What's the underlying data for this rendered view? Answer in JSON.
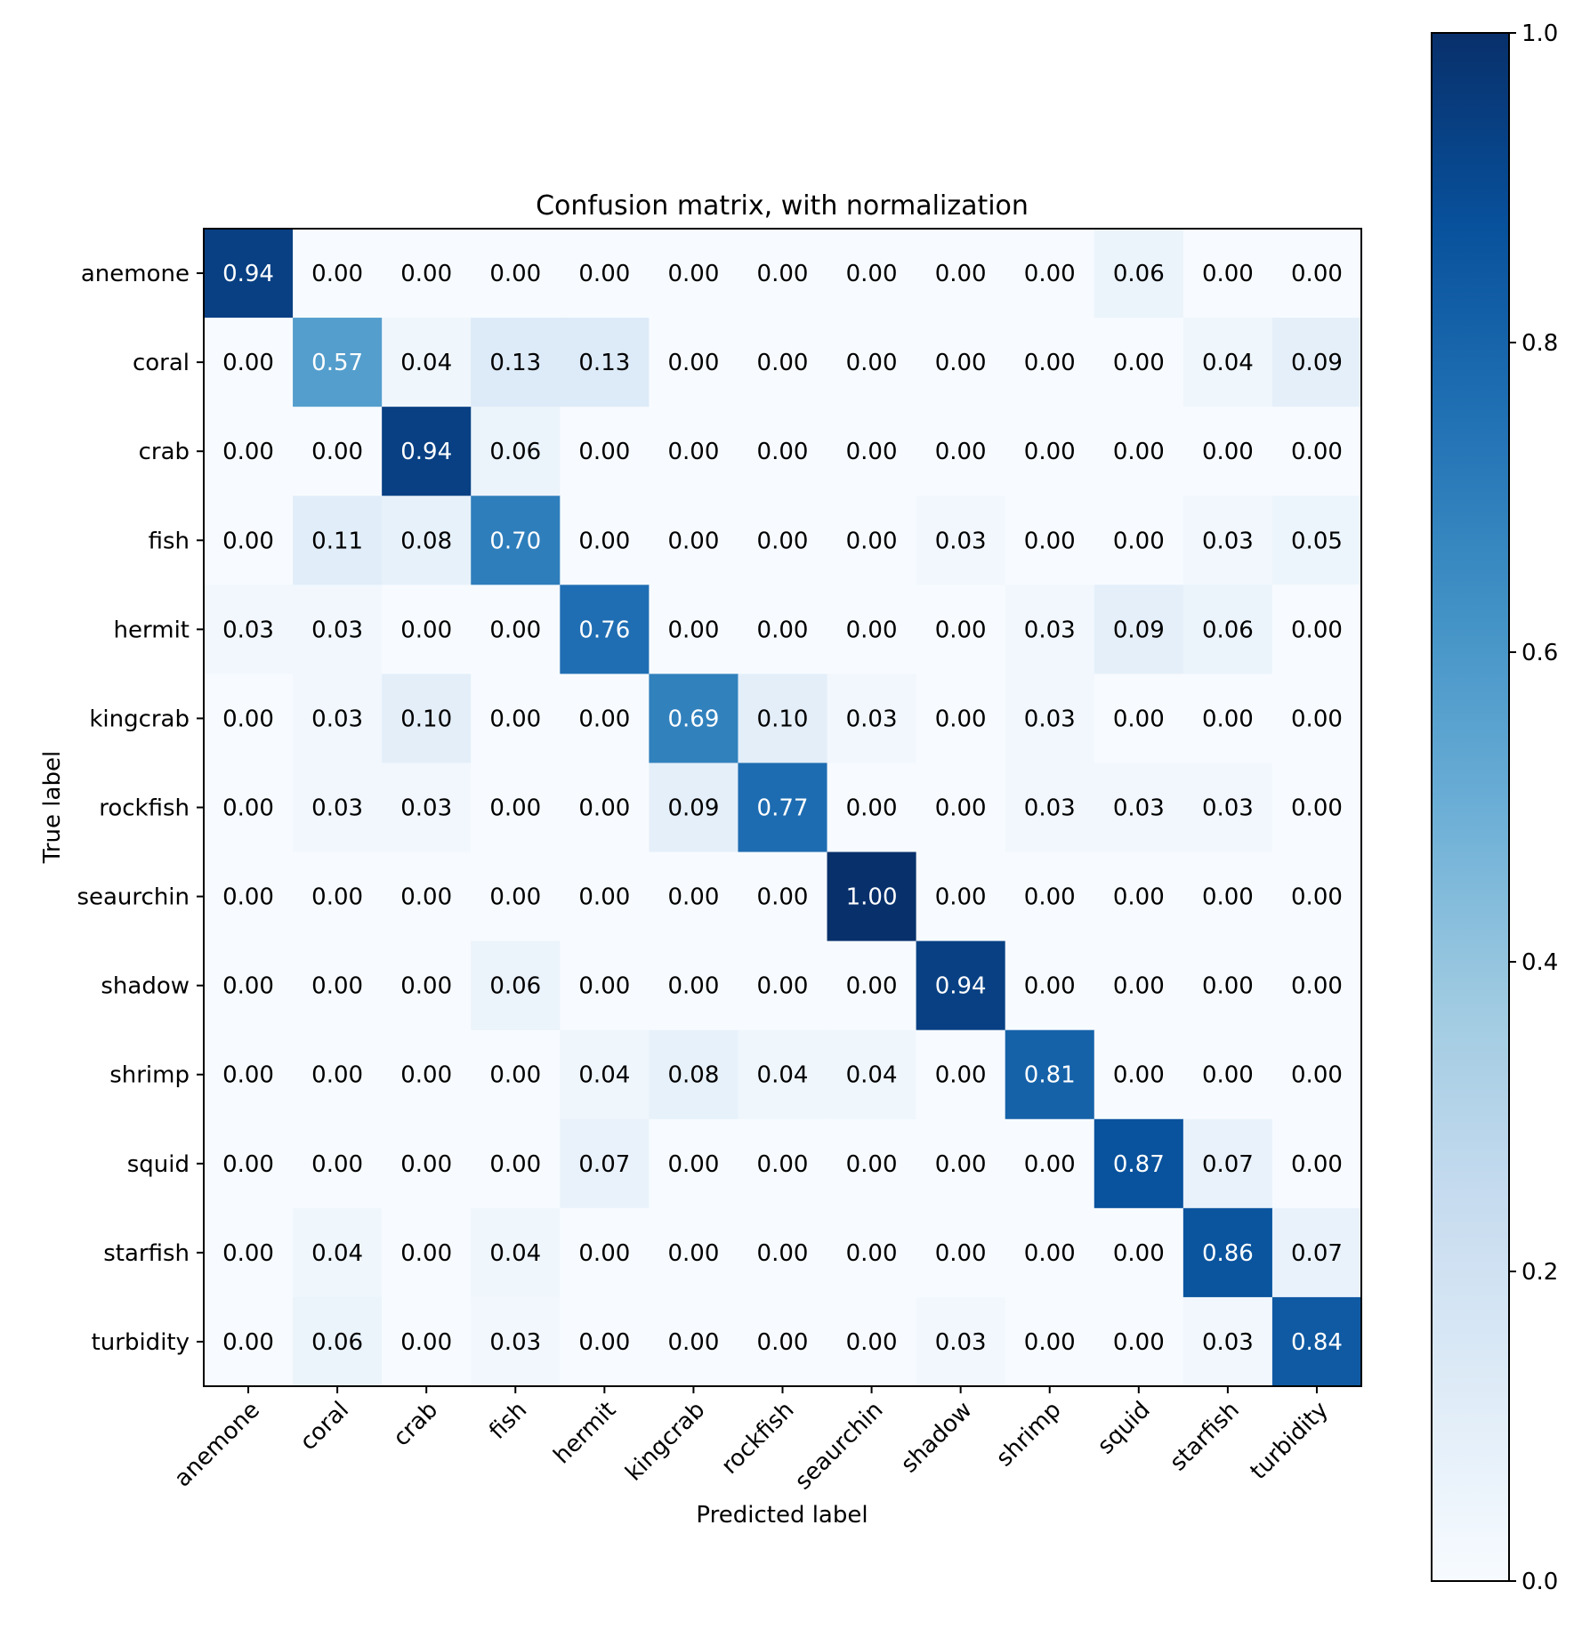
{
  "chart_data": {
    "type": "heatmap",
    "title": "Confusion matrix, with normalization",
    "xlabel": "Predicted label",
    "ylabel": "True label",
    "row_labels": [
      "anemone",
      "coral",
      "crab",
      "fish",
      "hermit",
      "kingcrab",
      "rockfish",
      "seaurchin",
      "shadow",
      "shrimp",
      "squid",
      "starfish",
      "turbidity"
    ],
    "col_labels": [
      "anemone",
      "coral",
      "crab",
      "fish",
      "hermit",
      "kingcrab",
      "rockfish",
      "seaurchin",
      "shadow",
      "shrimp",
      "squid",
      "starfish",
      "turbidity"
    ],
    "values": [
      [
        0.94,
        0.0,
        0.0,
        0.0,
        0.0,
        0.0,
        0.0,
        0.0,
        0.0,
        0.0,
        0.06,
        0.0,
        0.0
      ],
      [
        0.0,
        0.57,
        0.04,
        0.13,
        0.13,
        0.0,
        0.0,
        0.0,
        0.0,
        0.0,
        0.0,
        0.04,
        0.09
      ],
      [
        0.0,
        0.0,
        0.94,
        0.06,
        0.0,
        0.0,
        0.0,
        0.0,
        0.0,
        0.0,
        0.0,
        0.0,
        0.0
      ],
      [
        0.0,
        0.11,
        0.08,
        0.7,
        0.0,
        0.0,
        0.0,
        0.0,
        0.03,
        0.0,
        0.0,
        0.03,
        0.05
      ],
      [
        0.03,
        0.03,
        0.0,
        0.0,
        0.76,
        0.0,
        0.0,
        0.0,
        0.0,
        0.03,
        0.09,
        0.06,
        0.0
      ],
      [
        0.0,
        0.03,
        0.1,
        0.0,
        0.0,
        0.69,
        0.1,
        0.03,
        0.0,
        0.03,
        0.0,
        0.0,
        0.0
      ],
      [
        0.0,
        0.03,
        0.03,
        0.0,
        0.0,
        0.09,
        0.77,
        0.0,
        0.0,
        0.03,
        0.03,
        0.03,
        0.0
      ],
      [
        0.0,
        0.0,
        0.0,
        0.0,
        0.0,
        0.0,
        0.0,
        1.0,
        0.0,
        0.0,
        0.0,
        0.0,
        0.0
      ],
      [
        0.0,
        0.0,
        0.0,
        0.06,
        0.0,
        0.0,
        0.0,
        0.0,
        0.94,
        0.0,
        0.0,
        0.0,
        0.0
      ],
      [
        0.0,
        0.0,
        0.0,
        0.0,
        0.04,
        0.08,
        0.04,
        0.04,
        0.0,
        0.81,
        0.0,
        0.0,
        0.0
      ],
      [
        0.0,
        0.0,
        0.0,
        0.0,
        0.07,
        0.0,
        0.0,
        0.0,
        0.0,
        0.0,
        0.87,
        0.07,
        0.0
      ],
      [
        0.0,
        0.04,
        0.0,
        0.04,
        0.0,
        0.0,
        0.0,
        0.0,
        0.0,
        0.0,
        0.0,
        0.86,
        0.07
      ],
      [
        0.0,
        0.06,
        0.0,
        0.03,
        0.0,
        0.0,
        0.0,
        0.0,
        0.03,
        0.0,
        0.0,
        0.03,
        0.84
      ]
    ],
    "value_format_decimals": 2,
    "colormap": "Blues",
    "color_range": [
      0.0,
      1.0
    ],
    "colorbar_ticks": [
      0.0,
      0.2,
      0.4,
      0.6,
      0.8,
      1.0
    ],
    "colorbar_tick_labels": [
      "0.0",
      "0.2",
      "0.4",
      "0.6",
      "0.8",
      "1.0"
    ],
    "text_threshold": 0.5,
    "text_color_dark_cell": "#ffffff",
    "text_color_light_cell": "#000000",
    "grid": false
  }
}
